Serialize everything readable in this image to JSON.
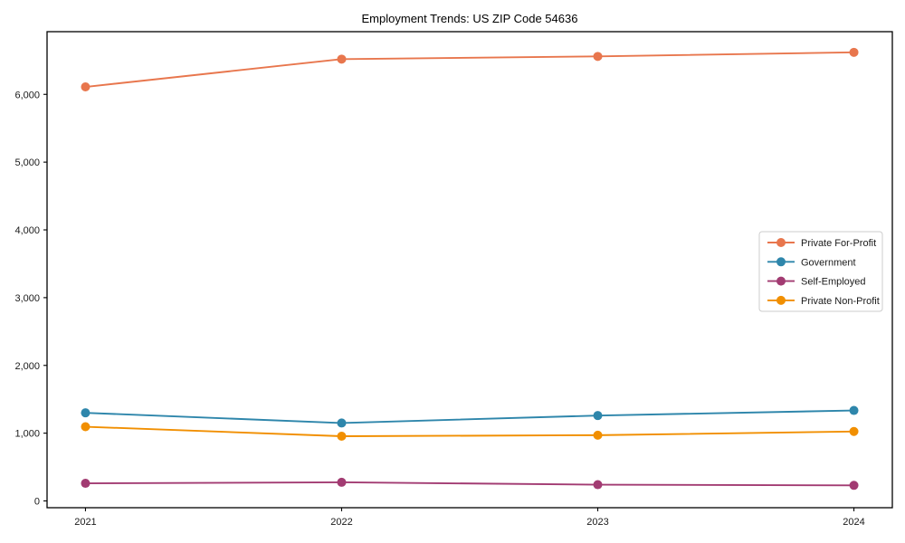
{
  "figure": {
    "background_color": "#ffffff",
    "spine_color": "#000000",
    "legend_border_color": "#cccccc"
  },
  "chart_data": {
    "type": "line",
    "title": "Employment Trends: US ZIP Code 54636",
    "xlabel": "",
    "ylabel": "",
    "x": [
      2021,
      2022,
      2023,
      2024
    ],
    "x_tick_labels": [
      "2021",
      "2022",
      "2023",
      "2024"
    ],
    "y_ticks": [
      0,
      1000,
      2000,
      3000,
      4000,
      5000,
      6000
    ],
    "y_tick_labels": [
      "0",
      "1,000",
      "2,000",
      "3,000",
      "4,000",
      "5,000",
      "6,000"
    ],
    "xlim": [
      2020.85,
      2024.15
    ],
    "ylim": [
      -100,
      6925
    ],
    "grid": false,
    "marker": "circle",
    "legend": {
      "position": "center-right",
      "entries": [
        "Private For-Profit",
        "Government",
        "Self-Employed",
        "Private Non-Profit"
      ]
    },
    "series": [
      {
        "name": "Private For-Profit",
        "color": "#e8764d",
        "values": [
          6110,
          6520,
          6560,
          6620
        ]
      },
      {
        "name": "Government",
        "color": "#2e86ab",
        "values": [
          1300,
          1150,
          1260,
          1335
        ]
      },
      {
        "name": "Self-Employed",
        "color": "#a23b72",
        "values": [
          260,
          275,
          240,
          230
        ]
      },
      {
        "name": "Private Non-Profit",
        "color": "#f18f01",
        "values": [
          1095,
          955,
          970,
          1025
        ]
      }
    ]
  }
}
